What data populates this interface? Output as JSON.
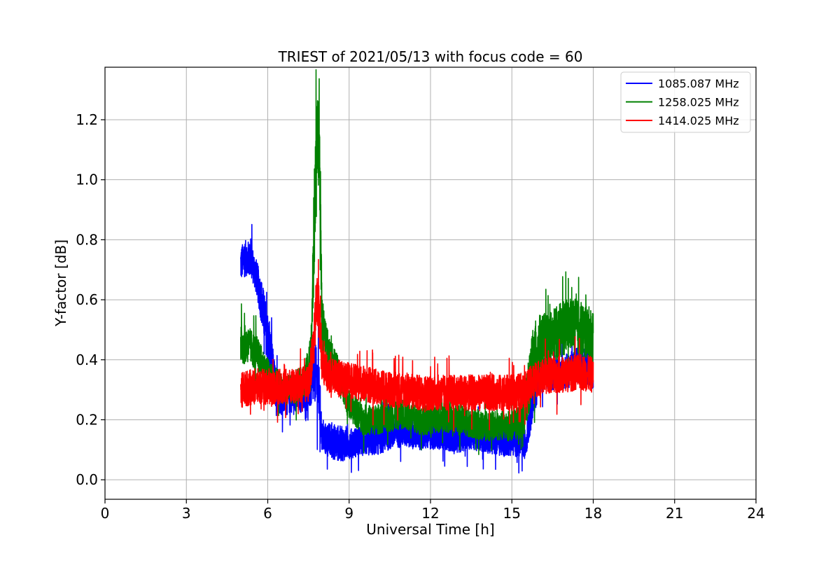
{
  "chart_data": {
    "type": "line",
    "title": "TRIEST of 2021/05/13 with focus code = 60",
    "xlabel": "Universal Time [h]",
    "ylabel": "Y-factor [dB]",
    "xlim": [
      0,
      24
    ],
    "ylim": [
      -0.065,
      1.375
    ],
    "x_ticks": [
      0,
      3,
      6,
      9,
      12,
      15,
      18,
      21,
      24
    ],
    "y_ticks": [
      0.0,
      0.2,
      0.4,
      0.6,
      0.8,
      1.0,
      1.2
    ],
    "x_tick_labels": [
      "0",
      "3",
      "6",
      "9",
      "12",
      "15",
      "18",
      "21",
      "24"
    ],
    "y_tick_labels": [
      "0.0",
      "0.2",
      "0.4",
      "0.6",
      "0.8",
      "1.0",
      "1.2"
    ],
    "grid": true,
    "legend_position": "top-right",
    "series": [
      {
        "name": "1085.087 MHz",
        "color": "#0000ff",
        "x": [
          5.0,
          5.2,
          5.4,
          5.6,
          5.8,
          6.0,
          6.3,
          6.6,
          7.0,
          7.3,
          7.6,
          7.75,
          7.9,
          8.0,
          8.3,
          8.7,
          9.0,
          9.5,
          10.0,
          10.5,
          11.0,
          11.5,
          12.0,
          12.5,
          13.0,
          13.5,
          14.0,
          14.5,
          15.0,
          15.5,
          15.8,
          16.0,
          16.4,
          16.8,
          17.2,
          17.6,
          18.0
        ],
        "y": [
          0.72,
          0.74,
          0.73,
          0.67,
          0.58,
          0.47,
          0.3,
          0.27,
          0.28,
          0.27,
          0.3,
          0.36,
          0.28,
          0.14,
          0.13,
          0.12,
          0.12,
          0.13,
          0.14,
          0.15,
          0.16,
          0.15,
          0.15,
          0.15,
          0.14,
          0.15,
          0.14,
          0.13,
          0.13,
          0.12,
          0.28,
          0.34,
          0.36,
          0.35,
          0.37,
          0.39,
          0.36
        ],
        "band": [
          0.06,
          0.06,
          0.06,
          0.06,
          0.08,
          0.09,
          0.07,
          0.06,
          0.05,
          0.05,
          0.06,
          0.1,
          0.1,
          0.05,
          0.06,
          0.06,
          0.05,
          0.05,
          0.06,
          0.05,
          0.05,
          0.05,
          0.05,
          0.05,
          0.05,
          0.05,
          0.05,
          0.05,
          0.05,
          0.05,
          0.07,
          0.06,
          0.06,
          0.06,
          0.06,
          0.06,
          0.06
        ]
      },
      {
        "name": "1258.025 MHz",
        "color": "#008000",
        "x": [
          5.0,
          5.3,
          5.6,
          5.9,
          6.2,
          6.6,
          7.0,
          7.4,
          7.6,
          7.7,
          7.8,
          7.9,
          8.0,
          8.1,
          8.3,
          8.6,
          9.0,
          9.5,
          10.0,
          10.5,
          11.0,
          11.5,
          12.0,
          12.5,
          13.0,
          13.5,
          14.0,
          14.5,
          15.0,
          15.4,
          15.8,
          16.0,
          16.4,
          16.8,
          17.2,
          17.6,
          18.0
        ],
        "y": [
          0.45,
          0.45,
          0.42,
          0.37,
          0.33,
          0.3,
          0.3,
          0.34,
          0.42,
          0.8,
          1.15,
          1.1,
          0.55,
          0.48,
          0.42,
          0.36,
          0.25,
          0.2,
          0.2,
          0.21,
          0.22,
          0.2,
          0.2,
          0.21,
          0.2,
          0.19,
          0.18,
          0.18,
          0.18,
          0.2,
          0.4,
          0.45,
          0.47,
          0.5,
          0.52,
          0.5,
          0.48
        ],
        "band": [
          0.07,
          0.06,
          0.06,
          0.05,
          0.05,
          0.05,
          0.05,
          0.06,
          0.08,
          0.18,
          0.14,
          0.14,
          0.1,
          0.06,
          0.05,
          0.05,
          0.05,
          0.05,
          0.05,
          0.05,
          0.05,
          0.05,
          0.05,
          0.05,
          0.05,
          0.05,
          0.05,
          0.05,
          0.05,
          0.06,
          0.12,
          0.1,
          0.09,
          0.09,
          0.09,
          0.09,
          0.09
        ]
      },
      {
        "name": "1414.025 MHz",
        "color": "#ff0000",
        "x": [
          5.0,
          5.5,
          6.0,
          6.5,
          7.0,
          7.5,
          7.7,
          7.8,
          7.9,
          8.0,
          8.2,
          8.6,
          9.0,
          9.5,
          10.0,
          10.5,
          11.0,
          11.5,
          12.0,
          12.5,
          13.0,
          13.5,
          14.0,
          14.5,
          15.0,
          15.5,
          15.8,
          16.0,
          16.5,
          17.0,
          17.5,
          18.0
        ],
        "y": [
          0.3,
          0.31,
          0.31,
          0.31,
          0.31,
          0.32,
          0.45,
          0.6,
          0.55,
          0.4,
          0.35,
          0.34,
          0.33,
          0.32,
          0.31,
          0.3,
          0.3,
          0.29,
          0.29,
          0.29,
          0.29,
          0.29,
          0.29,
          0.29,
          0.29,
          0.3,
          0.33,
          0.34,
          0.35,
          0.35,
          0.36,
          0.35
        ],
        "band": [
          0.06,
          0.06,
          0.06,
          0.06,
          0.06,
          0.06,
          0.08,
          0.1,
          0.1,
          0.07,
          0.06,
          0.06,
          0.06,
          0.06,
          0.06,
          0.06,
          0.06,
          0.06,
          0.06,
          0.06,
          0.06,
          0.06,
          0.06,
          0.06,
          0.06,
          0.06,
          0.06,
          0.06,
          0.06,
          0.06,
          0.06,
          0.06
        ]
      }
    ]
  }
}
